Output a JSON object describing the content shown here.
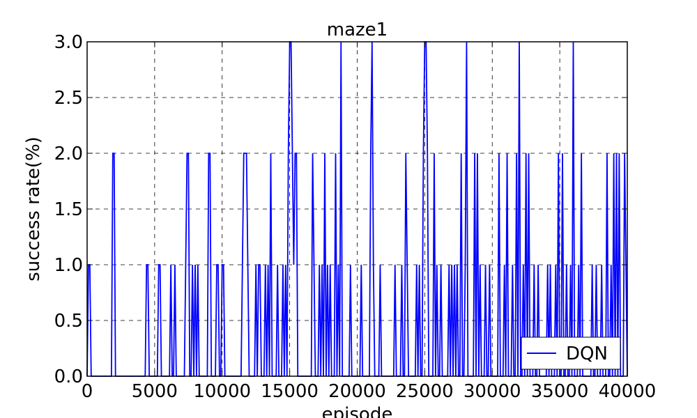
{
  "chart_data": {
    "type": "line",
    "title": "maze1",
    "xlabel": "episode",
    "ylabel": "success rate(%)",
    "xlim": [
      0,
      40000
    ],
    "ylim": [
      0,
      3.0
    ],
    "x_ticks": [
      0,
      5000,
      10000,
      15000,
      20000,
      25000,
      30000,
      35000,
      40000
    ],
    "x_tick_labels": [
      "0",
      "5000",
      "10000",
      "15000",
      "20000",
      "25000",
      "30000",
      "35000",
      "40000"
    ],
    "y_ticks": [
      0.0,
      0.5,
      1.0,
      1.5,
      2.0,
      2.5,
      3.0
    ],
    "y_tick_labels": [
      "0.0",
      "0.5",
      "1.0",
      "1.5",
      "2.0",
      "2.5",
      "3.0"
    ],
    "grid": true,
    "legend_position": "lower-right",
    "x_step": 100,
    "series": [
      {
        "name": "DQN",
        "color": "#0000ff",
        "spikes": [
          {
            "x": 100,
            "y": 1
          },
          {
            "x": 200,
            "y": 1
          },
          {
            "x": 1900,
            "y": 2
          },
          {
            "x": 2000,
            "y": 2
          },
          {
            "x": 4400,
            "y": 1
          },
          {
            "x": 4500,
            "y": 1
          },
          {
            "x": 5300,
            "y": 1
          },
          {
            "x": 5400,
            "y": 1
          },
          {
            "x": 6200,
            "y": 1
          },
          {
            "x": 6500,
            "y": 1
          },
          {
            "x": 7300,
            "y": 1
          },
          {
            "x": 7400,
            "y": 2
          },
          {
            "x": 7500,
            "y": 2
          },
          {
            "x": 7800,
            "y": 1
          },
          {
            "x": 8000,
            "y": 1
          },
          {
            "x": 8200,
            "y": 1
          },
          {
            "x": 9000,
            "y": 2
          },
          {
            "x": 9100,
            "y": 2
          },
          {
            "x": 9600,
            "y": 1
          },
          {
            "x": 9700,
            "y": 1
          },
          {
            "x": 10000,
            "y": 1
          },
          {
            "x": 10100,
            "y": 1
          },
          {
            "x": 11500,
            "y": 1
          },
          {
            "x": 11600,
            "y": 2
          },
          {
            "x": 11700,
            "y": 2
          },
          {
            "x": 11800,
            "y": 2
          },
          {
            "x": 11900,
            "y": 1
          },
          {
            "x": 12500,
            "y": 1
          },
          {
            "x": 12700,
            "y": 1
          },
          {
            "x": 12800,
            "y": 1
          },
          {
            "x": 13200,
            "y": 1
          },
          {
            "x": 13400,
            "y": 1
          },
          {
            "x": 13600,
            "y": 2
          },
          {
            "x": 14100,
            "y": 1
          },
          {
            "x": 14500,
            "y": 1
          },
          {
            "x": 14700,
            "y": 1
          },
          {
            "x": 14900,
            "y": 2
          },
          {
            "x": 15000,
            "y": 3
          },
          {
            "x": 15100,
            "y": 3
          },
          {
            "x": 15200,
            "y": 2
          },
          {
            "x": 15300,
            "y": 1
          },
          {
            "x": 15400,
            "y": 2
          },
          {
            "x": 15500,
            "y": 2
          },
          {
            "x": 16700,
            "y": 2
          },
          {
            "x": 16800,
            "y": 1
          },
          {
            "x": 17200,
            "y": 1
          },
          {
            "x": 17400,
            "y": 1
          },
          {
            "x": 17600,
            "y": 2
          },
          {
            "x": 17800,
            "y": 1
          },
          {
            "x": 18000,
            "y": 1
          },
          {
            "x": 18400,
            "y": 2
          },
          {
            "x": 18600,
            "y": 1
          },
          {
            "x": 18800,
            "y": 3
          },
          {
            "x": 19500,
            "y": 1
          },
          {
            "x": 20300,
            "y": 1
          },
          {
            "x": 21000,
            "y": 2
          },
          {
            "x": 21100,
            "y": 3
          },
          {
            "x": 21200,
            "y": 1
          },
          {
            "x": 21700,
            "y": 1
          },
          {
            "x": 22800,
            "y": 1
          },
          {
            "x": 23300,
            "y": 1
          },
          {
            "x": 23600,
            "y": 2
          },
          {
            "x": 23700,
            "y": 1
          },
          {
            "x": 24400,
            "y": 1
          },
          {
            "x": 24600,
            "y": 1
          },
          {
            "x": 24900,
            "y": 2
          },
          {
            "x": 25000,
            "y": 3
          },
          {
            "x": 25100,
            "y": 3
          },
          {
            "x": 25200,
            "y": 2
          },
          {
            "x": 25700,
            "y": 2
          },
          {
            "x": 25900,
            "y": 1
          },
          {
            "x": 26200,
            "y": 1
          },
          {
            "x": 26800,
            "y": 1
          },
          {
            "x": 27000,
            "y": 1
          },
          {
            "x": 27200,
            "y": 1
          },
          {
            "x": 27400,
            "y": 1
          },
          {
            "x": 27700,
            "y": 2
          },
          {
            "x": 28000,
            "y": 1
          },
          {
            "x": 28100,
            "y": 3
          },
          {
            "x": 28700,
            "y": 2
          },
          {
            "x": 28900,
            "y": 2
          },
          {
            "x": 29100,
            "y": 1
          },
          {
            "x": 29500,
            "y": 1
          },
          {
            "x": 29800,
            "y": 1
          },
          {
            "x": 30500,
            "y": 2
          },
          {
            "x": 30900,
            "y": 1
          },
          {
            "x": 31100,
            "y": 2
          },
          {
            "x": 31500,
            "y": 1
          },
          {
            "x": 31800,
            "y": 2
          },
          {
            "x": 32000,
            "y": 3
          },
          {
            "x": 32300,
            "y": 1
          },
          {
            "x": 32500,
            "y": 2
          },
          {
            "x": 32700,
            "y": 2
          },
          {
            "x": 33100,
            "y": 1
          },
          {
            "x": 33400,
            "y": 1
          },
          {
            "x": 34100,
            "y": 1
          },
          {
            "x": 34300,
            "y": 1
          },
          {
            "x": 34700,
            "y": 1
          },
          {
            "x": 34900,
            "y": 2
          },
          {
            "x": 35200,
            "y": 2
          },
          {
            "x": 35500,
            "y": 1
          },
          {
            "x": 35800,
            "y": 1
          },
          {
            "x": 36000,
            "y": 3
          },
          {
            "x": 36400,
            "y": 1
          },
          {
            "x": 36600,
            "y": 2
          },
          {
            "x": 37400,
            "y": 1
          },
          {
            "x": 37700,
            "y": 1
          },
          {
            "x": 38100,
            "y": 1
          },
          {
            "x": 38500,
            "y": 2
          },
          {
            "x": 38800,
            "y": 1
          },
          {
            "x": 39000,
            "y": 2
          },
          {
            "x": 39200,
            "y": 2
          },
          {
            "x": 39400,
            "y": 2
          },
          {
            "x": 39800,
            "y": 2
          },
          {
            "x": 39900,
            "y": 1
          }
        ]
      }
    ]
  }
}
